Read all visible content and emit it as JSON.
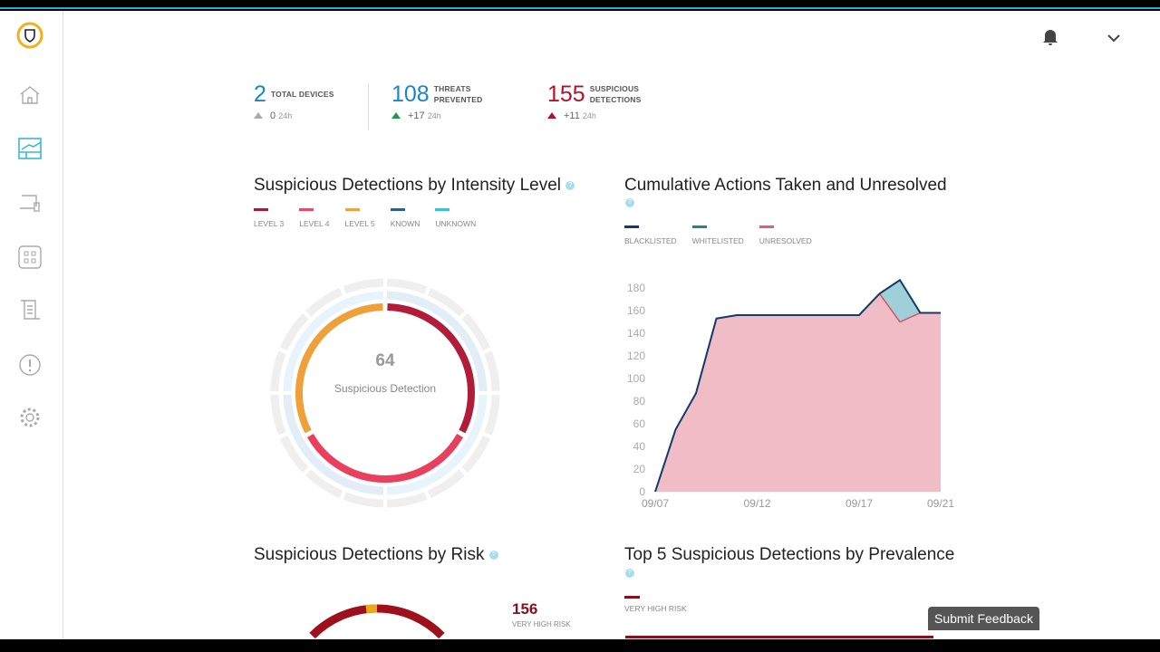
{
  "header": {
    "notifications_icon": "bell-icon",
    "user_menu_icon": "chevron-down-icon"
  },
  "sidebar": {
    "items": [
      "home",
      "dashboard",
      "devices",
      "apps",
      "reports",
      "alerts",
      "settings"
    ],
    "active": "dashboard"
  },
  "stats": [
    {
      "value": "2",
      "label1": "TOTAL DEVICES",
      "label2": "",
      "delta": "0",
      "period": "24h",
      "color": "#1a86c4",
      "arrow": "#aaaaaa"
    },
    {
      "value": "108",
      "label1": "THREATS",
      "label2": "PREVENTED",
      "delta": "+17",
      "period": "24h",
      "color": "#1a86c4",
      "arrow": "#1f9a4a"
    },
    {
      "value": "155",
      "label1": "SUSPICIOUS",
      "label2": "DETECTIONS",
      "delta": "+11",
      "period": "24h",
      "color": "#b3102a",
      "arrow": "#b3102a"
    }
  ],
  "intensity": {
    "title": "Suspicious Detections by Intensity Level",
    "help": "?",
    "legend": [
      {
        "label": "LEVEL 3",
        "color": "#a81c3a"
      },
      {
        "label": "LEVEL 4",
        "color": "#e84a6a"
      },
      {
        "label": "LEVEL 5",
        "color": "#f0a040"
      },
      {
        "label": "KNOWN",
        "color": "#2d5f8f"
      },
      {
        "label": "UNKNOWN",
        "color": "#3dbfe0"
      }
    ],
    "center_value": "64",
    "center_label": "Suspicious Detection"
  },
  "cumulative": {
    "title": "Cumulative Actions Taken and Unresolved",
    "help": "?",
    "legend": [
      {
        "label": "BLACKLISTED",
        "color": "#123a6a"
      },
      {
        "label": "WHITELISTED",
        "color": "#178a8a"
      },
      {
        "label": "UNRESOLVED",
        "color": "#e06070"
      }
    ]
  },
  "risk": {
    "title": "Suspicious Detections by Risk",
    "help": "?",
    "value": "156",
    "value_label": "VERY HIGH RISK"
  },
  "prevalence": {
    "title": "Top 5 Suspicious Detections by Prevalence",
    "help": "?",
    "legend": [
      {
        "label": "VERY HIGH RISK",
        "color": "#8b0f1a"
      }
    ]
  },
  "feedback_label": "Submit Feedback",
  "chart_data": [
    {
      "type": "pie",
      "title": "Suspicious Detections by Intensity Level",
      "categories": [
        "Level 3",
        "Level 4",
        "Level 5"
      ],
      "values": [
        21,
        22,
        21
      ],
      "total": 64
    },
    {
      "type": "area",
      "title": "Cumulative Actions Taken and Unresolved",
      "x": [
        "09/07",
        "09/08",
        "09/09",
        "09/10",
        "09/11",
        "09/12",
        "09/13",
        "09/14",
        "09/15",
        "09/16",
        "09/17",
        "09/18",
        "09/19",
        "09/20",
        "09/21"
      ],
      "xticks": [
        "09/07",
        "09/12",
        "09/17",
        "09/21"
      ],
      "yticks": [
        0,
        20,
        40,
        60,
        80,
        100,
        120,
        140,
        160,
        180
      ],
      "ylim": [
        0,
        180
      ],
      "series": [
        {
          "name": "Total (blacklisted line)",
          "values": [
            0,
            55,
            87,
            153,
            156,
            156,
            156,
            156,
            156,
            156,
            156,
            175,
            187,
            158,
            158
          ]
        },
        {
          "name": "Unresolved",
          "values": [
            0,
            55,
            87,
            153,
            156,
            156,
            156,
            156,
            156,
            156,
            156,
            175,
            150,
            158,
            158
          ]
        }
      ]
    }
  ]
}
